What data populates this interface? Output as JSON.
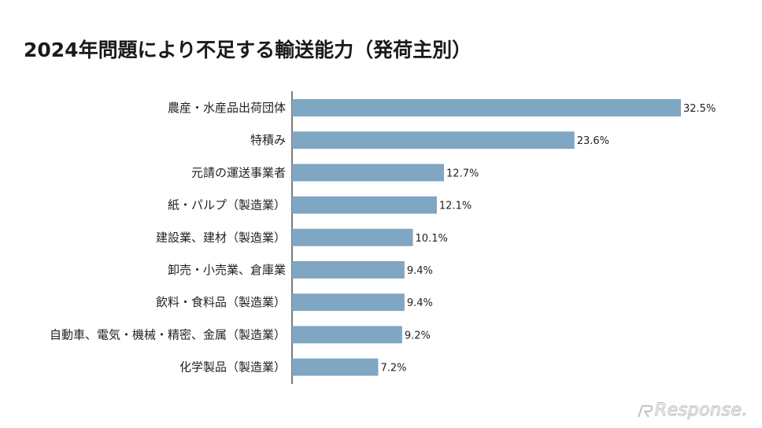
{
  "title": "2024年問題により不足する輸送能力（発荷主別）",
  "watermark": "Response.",
  "colors": {
    "bar": "#7fa6c3",
    "axis": "#333333"
  },
  "chart_data": {
    "type": "bar",
    "orientation": "horizontal",
    "title": "2024年問題により不足する輸送能力（発荷主別）",
    "categories": [
      "農産・水産品出荷団体",
      "特積み",
      "元請の運送事業者",
      "紙・パルプ（製造業）",
      "建設業、建材（製造業）",
      "卸売・小売業、倉庫業",
      "飲料・食料品（製造業）",
      "自動車、電気・機械・精密、金属（製造業）",
      "化学製品（製造業）"
    ],
    "values": [
      32.5,
      23.6,
      12.7,
      12.1,
      10.1,
      9.4,
      9.4,
      9.2,
      7.2
    ],
    "value_labels": [
      "32.5%",
      "23.6%",
      "12.7%",
      "12.1%",
      "10.1%",
      "9.4%",
      "9.4%",
      "9.2%",
      "7.2%"
    ],
    "xlim": [
      0,
      32.5
    ],
    "grid": false,
    "legend": "none"
  }
}
